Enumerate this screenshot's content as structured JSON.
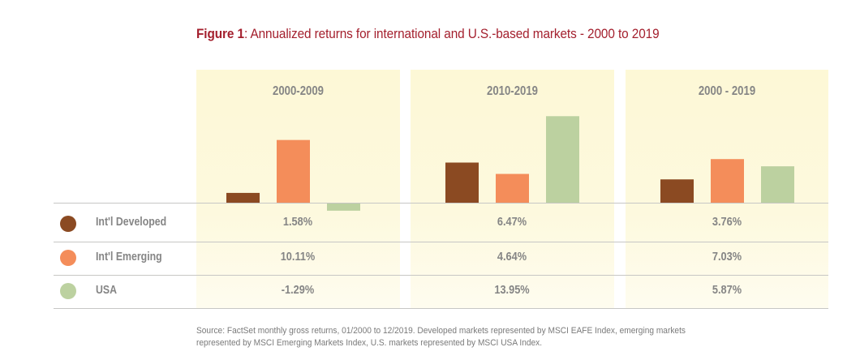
{
  "figure": {
    "title_bold": "Figure 1",
    "title_rest": ": Annualized returns for international and U.S.-based markets - 2000 to 2019",
    "source": [
      "Source: FactSet monthly gross returns, 01/2000 to 12/2019. Developed markets represented by MSCI EAFE Index, emerging markets",
      "represented by MSCI Emerging Markets Index, U.S. markets represented by MSCI USA Index."
    ]
  },
  "chart_data": {
    "type": "bar",
    "title": "Figure 1: Annualized returns for international and U.S.-based markets - 2000 to 2019",
    "xlabel": "",
    "ylabel": "",
    "grid": false,
    "legend_placement": "left (table rows)",
    "categories": [
      "2000-2009",
      "2010-2019",
      "2000 - 2019"
    ],
    "ylim": [
      -2,
      15
    ],
    "series": [
      {
        "name": "Int'l Developed",
        "color": "#8B4A22",
        "values": [
          1.58,
          6.47,
          3.76
        ],
        "labels": [
          "1.58%",
          "6.47%",
          "3.76%"
        ]
      },
      {
        "name": "Int'l Emerging",
        "color": "#F48D5A",
        "values": [
          10.11,
          4.64,
          7.03
        ],
        "labels": [
          "10.11%",
          "4.64%",
          "7.03%"
        ]
      },
      {
        "name": "USA",
        "color": "#BCD1A0",
        "values": [
          -1.29,
          13.95,
          5.87
        ],
        "labels": [
          "-1.29%",
          "13.95%",
          "5.87%"
        ]
      }
    ]
  }
}
